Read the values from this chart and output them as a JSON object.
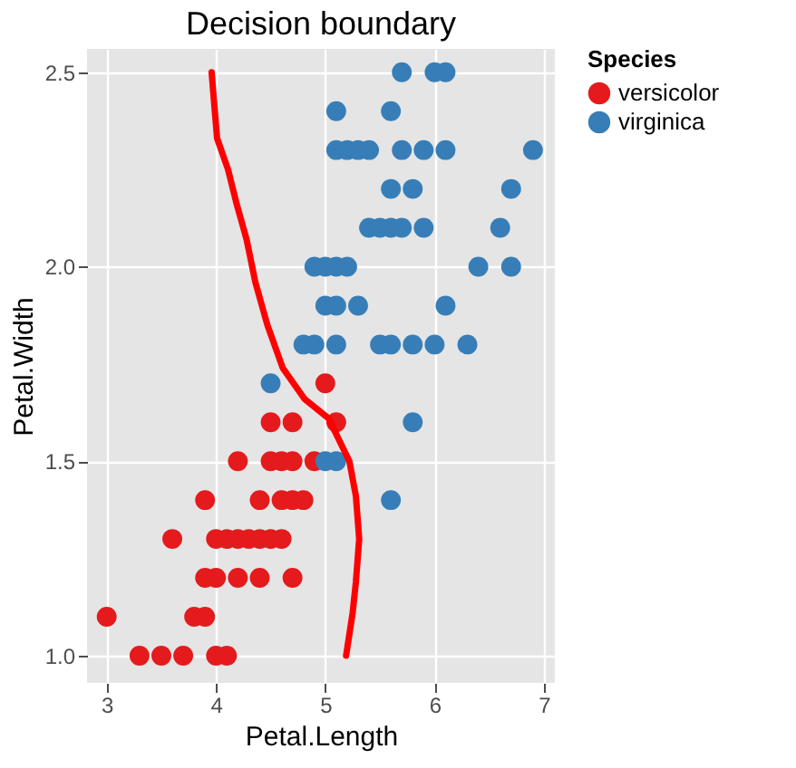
{
  "chart_data": {
    "type": "scatter",
    "title": "Decision boundary",
    "xlabel": "Petal.Length",
    "ylabel": "Petal.Width",
    "legend_title": "Species",
    "legend": "right",
    "grid": true,
    "marker": "circle",
    "xlim": [
      2.82,
      7.1
    ],
    "ylim": [
      0.93,
      2.56
    ],
    "xticks": [
      3,
      4,
      5,
      6,
      7
    ],
    "yticks": [
      {
        "value": 1,
        "label": "1.0"
      },
      {
        "value": 1.5,
        "label": "1.5"
      },
      {
        "value": 2,
        "label": "2.0"
      },
      {
        "value": 2.5,
        "label": "2.5"
      }
    ],
    "series": [
      {
        "name": "versicolor",
        "color": "#e41a1c",
        "x": [
          3.3,
          3.5,
          3.7,
          4.0,
          4.1,
          3.0,
          3.8,
          3.9,
          3.9,
          4.0,
          4.2,
          4.4,
          4.7,
          3.6,
          4.0,
          4.1,
          4.2,
          4.3,
          4.4,
          4.5,
          4.6,
          3.9,
          4.4,
          4.6,
          4.7,
          4.8,
          4.2,
          4.5,
          4.6,
          4.7,
          4.9,
          4.5,
          4.7,
          5.1,
          5.0
        ],
        "values": [
          1.0,
          1.0,
          1.0,
          1.0,
          1.0,
          1.1,
          1.1,
          1.1,
          1.2,
          1.2,
          1.2,
          1.2,
          1.2,
          1.3,
          1.3,
          1.3,
          1.3,
          1.3,
          1.3,
          1.3,
          1.3,
          1.4,
          1.4,
          1.4,
          1.4,
          1.4,
          1.5,
          1.5,
          1.5,
          1.5,
          1.5,
          1.6,
          1.6,
          1.6,
          1.7
        ]
      },
      {
        "name": "virginica",
        "color": "#377eb8",
        "x": [
          5.6,
          5.0,
          5.1,
          5.8,
          4.5,
          4.8,
          4.9,
          5.1,
          5.5,
          5.6,
          5.8,
          6.0,
          6.3,
          5.0,
          5.1,
          5.3,
          6.1,
          4.9,
          5.0,
          5.1,
          5.2,
          6.4,
          6.7,
          5.4,
          5.5,
          5.6,
          5.7,
          5.9,
          6.6,
          5.6,
          5.8,
          6.7,
          5.1,
          5.2,
          5.3,
          5.4,
          5.7,
          5.9,
          6.1,
          6.9,
          5.1,
          5.6,
          5.7,
          6.0,
          6.1
        ],
        "values": [
          1.4,
          1.5,
          1.5,
          1.6,
          1.7,
          1.8,
          1.8,
          1.8,
          1.8,
          1.8,
          1.8,
          1.8,
          1.8,
          1.9,
          1.9,
          1.9,
          1.9,
          2.0,
          2.0,
          2.0,
          2.0,
          2.0,
          2.0,
          2.1,
          2.1,
          2.1,
          2.1,
          2.1,
          2.1,
          2.2,
          2.2,
          2.2,
          2.3,
          2.3,
          2.3,
          2.3,
          2.3,
          2.3,
          2.3,
          2.3,
          2.4,
          2.4,
          2.5,
          2.5,
          2.5
        ]
      },
      {
        "type": "line",
        "marker": "none",
        "color": "#ff0000",
        "x": [
          3.96,
          3.98,
          4.01,
          4.11,
          4.19,
          4.28,
          4.36,
          4.47,
          4.61,
          4.81,
          5.03,
          5.22,
          5.28,
          5.31,
          5.28,
          5.25,
          5.19
        ],
        "values": [
          2.5,
          2.43,
          2.33,
          2.25,
          2.16,
          2.07,
          1.96,
          1.85,
          1.74,
          1.66,
          1.61,
          1.5,
          1.41,
          1.3,
          1.19,
          1.11,
          1.0
        ]
      }
    ]
  }
}
